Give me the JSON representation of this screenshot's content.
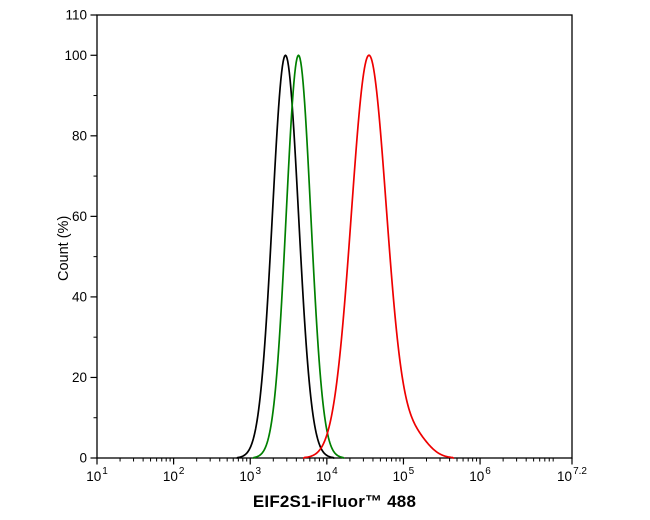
{
  "chart_data": {
    "type": "line",
    "title": "",
    "xlabel": "EIF2S1-iFluor™ 488",
    "ylabel": "Count (%)",
    "x_scale": "log10",
    "x_range_log10": [
      1,
      7.2
    ],
    "ylim": [
      0,
      110
    ],
    "y_ticks": [
      0,
      20,
      40,
      60,
      80,
      100,
      110
    ],
    "y_minor_ticks": [
      10,
      30,
      50,
      70,
      90
    ],
    "x_ticks": [
      {
        "base": "10",
        "exponent": "1",
        "log10": 1
      },
      {
        "base": "10",
        "exponent": "2",
        "log10": 2
      },
      {
        "base": "10",
        "exponent": "3",
        "log10": 3
      },
      {
        "base": "10",
        "exponent": "4",
        "log10": 4
      },
      {
        "base": "10",
        "exponent": "5",
        "log10": 5
      },
      {
        "base": "10",
        "exponent": "6",
        "log10": 6
      },
      {
        "base": "10",
        "exponent": "7.2",
        "log10": 7.2
      }
    ],
    "grid": false,
    "legend_position": "none",
    "series": [
      {
        "name": "black-curve",
        "color": "#000000",
        "amplitude": 100,
        "log10_center": 3.46,
        "log10_sigma": 0.17,
        "peak_x_approx": 2900,
        "peak_y": 100
      },
      {
        "name": "green-curve",
        "color": "#008000",
        "amplitude": 100,
        "log10_center": 3.63,
        "log10_sigma": 0.16,
        "peak_x_approx": 4300,
        "peak_y": 100
      },
      {
        "name": "red-curve",
        "color": "#ee0000",
        "amplitude": 100,
        "log10_center": 4.55,
        "log10_sigma": 0.23,
        "peak_x_approx": 35000,
        "peak_y": 100,
        "shoulder": {
          "log10_center": 5.15,
          "log10_sigma": 0.18,
          "amplitude": 5
        }
      }
    ]
  }
}
